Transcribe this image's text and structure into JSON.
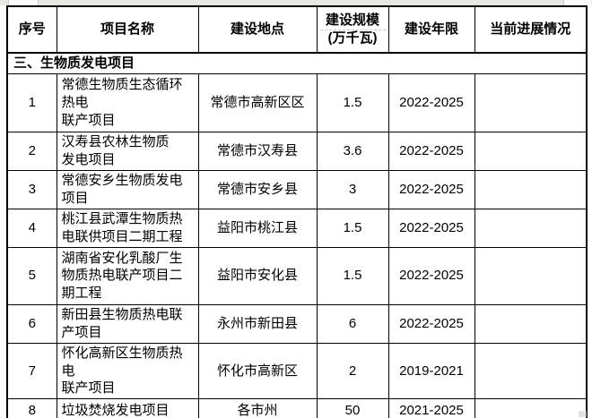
{
  "colors": {
    "border": "#000000",
    "top_strip": "#e7e7e3",
    "cell_background": "#ffffff"
  },
  "table": {
    "headers": [
      "序号",
      "项目名称",
      "建设地点",
      "建设规模\n(万千瓦)",
      "建设年限",
      "当前进展情况"
    ],
    "section_title": "三、生物质发电项目",
    "rows": [
      {
        "no": "1",
        "name": "常德生物质生态循环\n热电\n联产项目",
        "location": "常德市高新区区",
        "scale": "1.5",
        "years": "2022-2025",
        "progress": ""
      },
      {
        "no": "2",
        "name": "汉寿县农林生物质\n发电项目",
        "location": "常德市汉寿县",
        "scale": "3.6",
        "years": "2022-2025",
        "progress": ""
      },
      {
        "no": "3",
        "name": "常德安乡生物质发电\n项目",
        "location": "常德市安乡县",
        "scale": "3",
        "years": "2022-2025",
        "progress": ""
      },
      {
        "no": "4",
        "name": "桃江县武潭生物质热\n电联供项目二期工程",
        "location": "益阳市桃江县",
        "scale": "1.5",
        "years": "2022-2025",
        "progress": ""
      },
      {
        "no": "5",
        "name": "湖南省安化乳酸厂生\n物质热电联产项目二\n期工程",
        "location": "益阳市安化县",
        "scale": "1.5",
        "years": "2022-2025",
        "progress": ""
      },
      {
        "no": "6",
        "name": "新田县生物质热电联\n产项目",
        "location": "永州市新田县",
        "scale": "6",
        "years": "2022-2025",
        "progress": ""
      },
      {
        "no": "7",
        "name": "怀化高新区生物质热\n电\n联产项目",
        "location": "怀化市高新区",
        "scale": "2",
        "years": "2019-2021",
        "progress": ""
      },
      {
        "no": "8",
        "name": "垃圾焚烧发电项目",
        "location": "各市州",
        "scale": "50",
        "years": "2021-2025",
        "progress": ""
      }
    ]
  }
}
